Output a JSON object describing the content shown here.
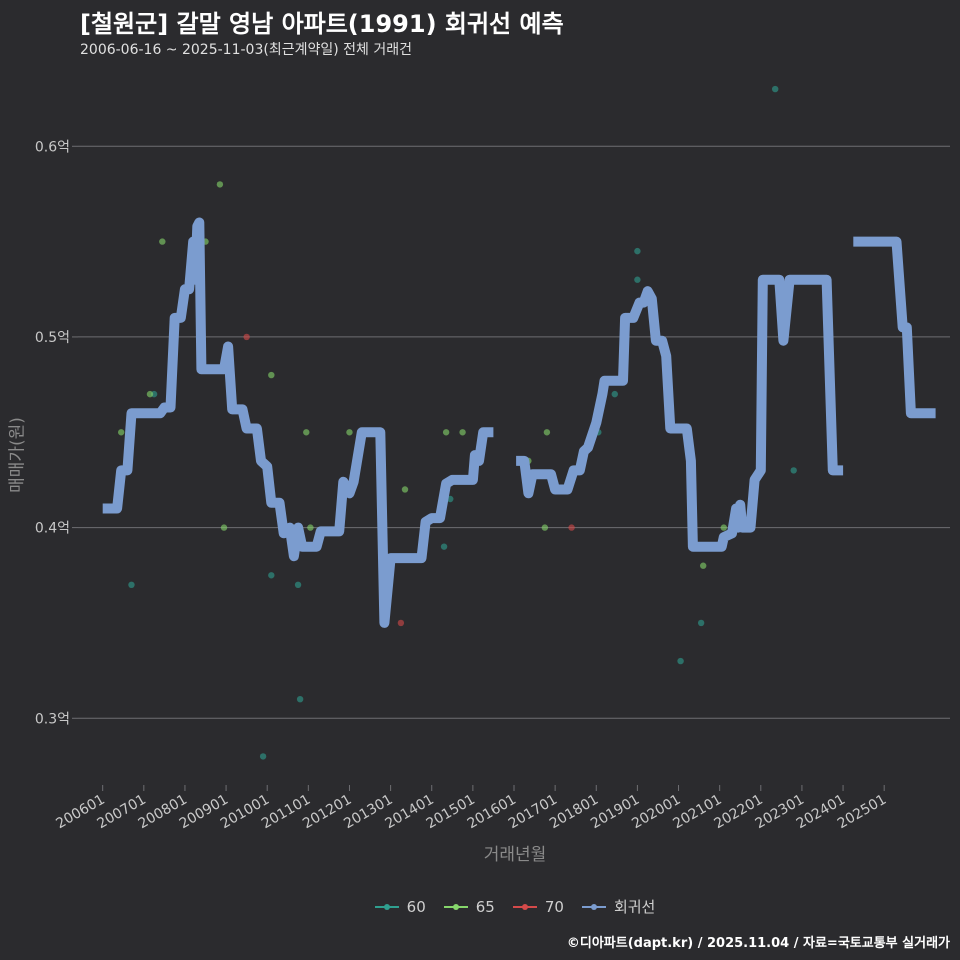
{
  "colors": {
    "background": "#2b2b2e",
    "grid": "#6e6e72",
    "regression": "#7b9ccf",
    "s60": "#2f9f8f",
    "s65": "#86d66b",
    "s70": "#d44a4a"
  },
  "chart_data": {
    "type": "scatter",
    "title": "[철원군] 갈말 영남 아파트(1991) 회귀선 예측",
    "subtitle": "2006-06-16 ~ 2025-11-03(최근계약일) 전체 거래건",
    "xlabel": "거래년월",
    "ylabel": "매매가(원)",
    "ylim": [
      0.265,
      0.64
    ],
    "xlim": [
      2005.4,
      2026.6
    ],
    "y_ticks": [
      {
        "value": 0.3,
        "label": "0.3억"
      },
      {
        "value": 0.4,
        "label": "0.4억"
      },
      {
        "value": 0.5,
        "label": "0.5억"
      },
      {
        "value": 0.6,
        "label": "0.6억"
      }
    ],
    "x_ticks": [
      {
        "value": 2006.0,
        "label": "200601"
      },
      {
        "value": 2007.0,
        "label": "200701"
      },
      {
        "value": 2008.0,
        "label": "200801"
      },
      {
        "value": 2009.0,
        "label": "200901"
      },
      {
        "value": 2010.0,
        "label": "201001"
      },
      {
        "value": 2011.0,
        "label": "201101"
      },
      {
        "value": 2012.0,
        "label": "201201"
      },
      {
        "value": 2013.0,
        "label": "201301"
      },
      {
        "value": 2014.0,
        "label": "201401"
      },
      {
        "value": 2015.0,
        "label": "201501"
      },
      {
        "value": 2016.0,
        "label": "201601"
      },
      {
        "value": 2017.0,
        "label": "201701"
      },
      {
        "value": 2018.0,
        "label": "201801"
      },
      {
        "value": 2019.0,
        "label": "201901"
      },
      {
        "value": 2020.0,
        "label": "202001"
      },
      {
        "value": 2021.0,
        "label": "202101"
      },
      {
        "value": 2022.0,
        "label": "202201"
      },
      {
        "value": 2023.0,
        "label": "202301"
      },
      {
        "value": 2024.0,
        "label": "202401"
      },
      {
        "value": 2025.0,
        "label": "202501"
      }
    ],
    "series": [
      {
        "name": "60",
        "color_key": "s60",
        "points": [
          [
            2006.7,
            0.37
          ],
          [
            2007.25,
            0.47
          ],
          [
            2009.9,
            0.28
          ],
          [
            2010.1,
            0.375
          ],
          [
            2010.75,
            0.37
          ],
          [
            2010.8,
            0.31
          ],
          [
            2014.3,
            0.39
          ],
          [
            2014.45,
            0.415
          ],
          [
            2018.05,
            0.45
          ],
          [
            2018.45,
            0.47
          ],
          [
            2019.0,
            0.545
          ],
          [
            2019.0,
            0.53
          ],
          [
            2020.05,
            0.33
          ],
          [
            2020.25,
            0.45
          ],
          [
            2020.55,
            0.35
          ],
          [
            2022.35,
            0.63
          ],
          [
            2022.8,
            0.43
          ]
        ]
      },
      {
        "name": "65",
        "color_key": "s65",
        "points": [
          [
            2006.45,
            0.45
          ],
          [
            2007.15,
            0.47
          ],
          [
            2007.45,
            0.55
          ],
          [
            2008.5,
            0.55
          ],
          [
            2008.85,
            0.58
          ],
          [
            2008.95,
            0.4
          ],
          [
            2010.1,
            0.48
          ],
          [
            2010.95,
            0.45
          ],
          [
            2011.05,
            0.4
          ],
          [
            2012.0,
            0.45
          ],
          [
            2013.35,
            0.42
          ],
          [
            2014.35,
            0.45
          ],
          [
            2014.75,
            0.45
          ],
          [
            2016.35,
            0.435
          ],
          [
            2016.75,
            0.4
          ],
          [
            2016.8,
            0.45
          ],
          [
            2020.6,
            0.38
          ],
          [
            2021.1,
            0.4
          ]
        ]
      },
      {
        "name": "70",
        "color_key": "s70",
        "points": [
          [
            2009.5,
            0.5
          ],
          [
            2013.25,
            0.35
          ],
          [
            2017.4,
            0.4
          ]
        ]
      }
    ],
    "regression": {
      "name": "회귀선",
      "segments": [
        [
          [
            2006.0,
            0.41
          ],
          [
            2006.35,
            0.41
          ],
          [
            2006.45,
            0.43
          ],
          [
            2006.6,
            0.43
          ],
          [
            2006.7,
            0.46
          ],
          [
            2007.4,
            0.46
          ],
          [
            2007.5,
            0.463
          ],
          [
            2007.65,
            0.463
          ],
          [
            2007.75,
            0.51
          ],
          [
            2007.9,
            0.51
          ],
          [
            2008.0,
            0.525
          ],
          [
            2008.1,
            0.525
          ],
          [
            2008.2,
            0.55
          ],
          [
            2008.25,
            0.53
          ],
          [
            2008.3,
            0.558
          ],
          [
            2008.35,
            0.56
          ],
          [
            2008.4,
            0.483
          ],
          [
            2008.95,
            0.483
          ],
          [
            2009.05,
            0.495
          ],
          [
            2009.15,
            0.462
          ],
          [
            2009.4,
            0.462
          ],
          [
            2009.5,
            0.452
          ],
          [
            2009.75,
            0.452
          ],
          [
            2009.85,
            0.435
          ],
          [
            2010.0,
            0.432
          ],
          [
            2010.1,
            0.413
          ],
          [
            2010.3,
            0.413
          ],
          [
            2010.4,
            0.397
          ],
          [
            2010.55,
            0.4
          ],
          [
            2010.65,
            0.385
          ],
          [
            2010.75,
            0.4
          ],
          [
            2010.85,
            0.39
          ],
          [
            2011.2,
            0.39
          ],
          [
            2011.3,
            0.398
          ],
          [
            2011.75,
            0.398
          ],
          [
            2011.85,
            0.424
          ],
          [
            2012.0,
            0.418
          ],
          [
            2012.1,
            0.424
          ],
          [
            2012.3,
            0.45
          ],
          [
            2012.75,
            0.45
          ],
          [
            2012.85,
            0.35
          ],
          [
            2013.0,
            0.384
          ],
          [
            2013.75,
            0.384
          ],
          [
            2013.85,
            0.403
          ],
          [
            2014.0,
            0.405
          ],
          [
            2014.2,
            0.405
          ],
          [
            2014.35,
            0.423
          ],
          [
            2014.5,
            0.425
          ],
          [
            2015.0,
            0.425
          ],
          [
            2015.05,
            0.438
          ],
          [
            2015.15,
            0.435
          ],
          [
            2015.25,
            0.45
          ],
          [
            2015.5,
            0.45
          ]
        ],
        [
          [
            2016.05,
            0.435
          ],
          [
            2016.25,
            0.435
          ],
          [
            2016.35,
            0.418
          ],
          [
            2016.45,
            0.428
          ],
          [
            2016.9,
            0.428
          ],
          [
            2017.0,
            0.42
          ],
          [
            2017.3,
            0.42
          ],
          [
            2017.45,
            0.43
          ],
          [
            2017.6,
            0.43
          ],
          [
            2017.7,
            0.44
          ],
          [
            2017.8,
            0.442
          ],
          [
            2018.0,
            0.455
          ],
          [
            2018.15,
            0.47
          ],
          [
            2018.2,
            0.477
          ],
          [
            2018.65,
            0.477
          ],
          [
            2018.7,
            0.51
          ],
          [
            2018.9,
            0.51
          ],
          [
            2019.05,
            0.518
          ],
          [
            2019.15,
            0.518
          ],
          [
            2019.25,
            0.524
          ],
          [
            2019.35,
            0.52
          ],
          [
            2019.45,
            0.498
          ],
          [
            2019.6,
            0.498
          ],
          [
            2019.7,
            0.49
          ],
          [
            2019.8,
            0.452
          ],
          [
            2020.2,
            0.452
          ],
          [
            2020.3,
            0.435
          ],
          [
            2020.35,
            0.39
          ],
          [
            2021.05,
            0.39
          ],
          [
            2021.1,
            0.395
          ],
          [
            2021.3,
            0.397
          ],
          [
            2021.4,
            0.41
          ],
          [
            2021.45,
            0.4
          ],
          [
            2021.5,
            0.412
          ],
          [
            2021.55,
            0.4
          ],
          [
            2021.75,
            0.4
          ],
          [
            2021.85,
            0.425
          ],
          [
            2022.0,
            0.43
          ],
          [
            2022.05,
            0.53
          ],
          [
            2022.45,
            0.53
          ],
          [
            2022.55,
            0.498
          ],
          [
            2022.7,
            0.53
          ],
          [
            2023.6,
            0.53
          ],
          [
            2023.75,
            0.43
          ],
          [
            2024.0,
            0.43
          ]
        ],
        [
          [
            2024.25,
            0.55
          ],
          [
            2025.3,
            0.55
          ],
          [
            2025.45,
            0.505
          ],
          [
            2025.55,
            0.505
          ],
          [
            2025.65,
            0.46
          ],
          [
            2026.25,
            0.46
          ]
        ]
      ]
    },
    "legend": [
      {
        "label": "60",
        "color_key": "s60"
      },
      {
        "label": "65",
        "color_key": "s65"
      },
      {
        "label": "70",
        "color_key": "s70"
      },
      {
        "label": "회귀선",
        "color_key": "regression"
      }
    ],
    "legend_position": "bottom"
  },
  "footer": "©디아파트(dapt.kr) / 2025.11.04 / 자료=국토교통부 실거래가"
}
